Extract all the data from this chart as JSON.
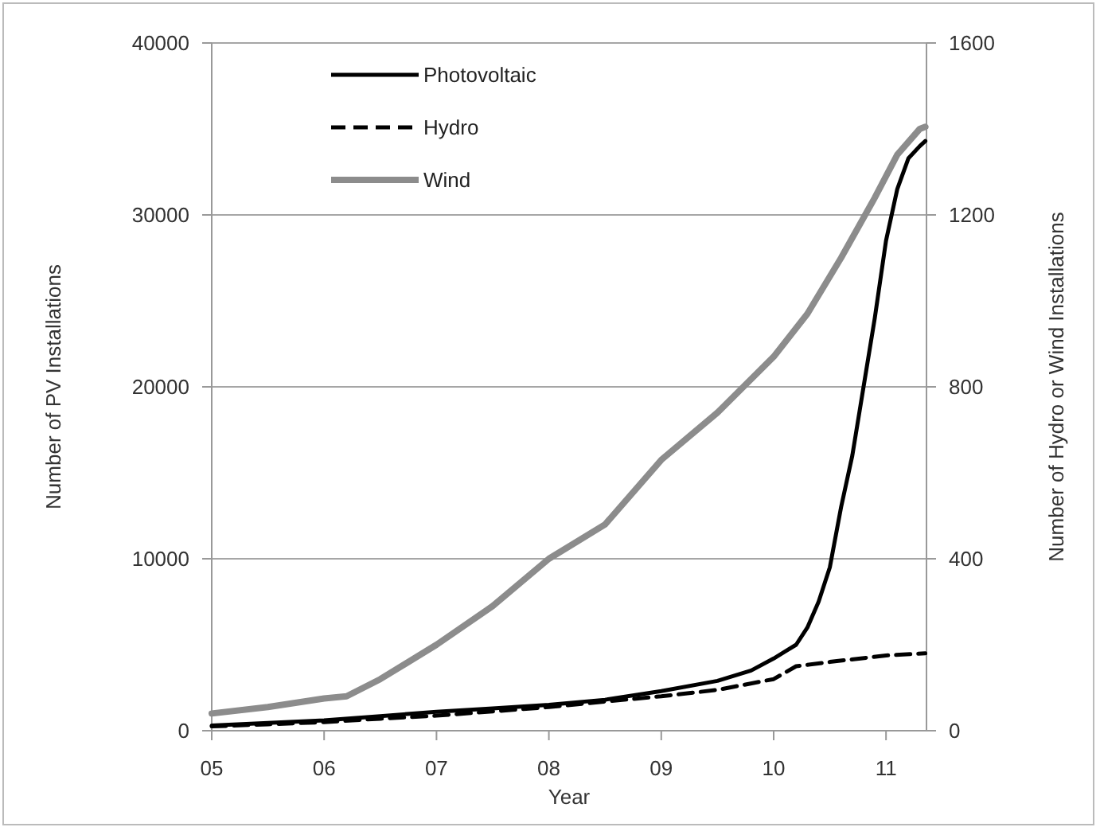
{
  "chart_data": {
    "type": "line",
    "xlabel": "Year",
    "ylabel": "Number of PV Installations",
    "y2label": "Number of Hydro or Wind Installations",
    "xlim": [
      5,
      11.36
    ],
    "xticks": [
      {
        "value": 5,
        "label": "05"
      },
      {
        "value": 6,
        "label": "06"
      },
      {
        "value": 7,
        "label": "07"
      },
      {
        "value": 8,
        "label": "08"
      },
      {
        "value": 9,
        "label": "09"
      },
      {
        "value": 10,
        "label": "10"
      },
      {
        "value": 11,
        "label": "11"
      }
    ],
    "ylim": [
      0,
      40000
    ],
    "yticks": [
      0,
      10000,
      20000,
      30000,
      40000
    ],
    "y2lim": [
      0,
      1600
    ],
    "y2ticks": [
      0,
      400,
      800,
      1200,
      1600
    ],
    "grid": "y",
    "legend": "top left",
    "series": [
      {
        "name": "Photovoltaic",
        "color": "#000000",
        "line_style": "solid",
        "x": [
          5,
          5.5,
          6,
          6.5,
          7,
          7.5,
          8,
          8.5,
          9,
          9.5,
          9.8,
          10,
          10.1,
          10.2,
          10.3,
          10.4,
          10.5,
          10.6,
          10.7,
          10.8,
          10.9,
          11,
          11.1,
          11.2,
          11.3,
          11.35
        ],
        "values": [
          300,
          450,
          600,
          850,
          1100,
          1300,
          1500,
          1800,
          2300,
          2900,
          3500,
          4200,
          4600,
          5000,
          6000,
          7500,
          9500,
          13000,
          16000,
          20000,
          24000,
          28500,
          31500,
          33300,
          34000,
          34300
        ]
      },
      {
        "name": "Hydro",
        "color": "#000000",
        "line_style": "dashed",
        "axis": "y2",
        "x": [
          5,
          5.5,
          6,
          6.5,
          7,
          7.5,
          8,
          8.5,
          9,
          9.5,
          10,
          10.2,
          10.5,
          11,
          11.35
        ],
        "values": [
          10,
          15,
          20,
          28,
          35,
          45,
          55,
          68,
          80,
          95,
          120,
          150,
          160,
          175,
          180
        ]
      },
      {
        "name": "Wind",
        "color": "#8c8c8c",
        "line_style": "solid",
        "axis": "y2",
        "x": [
          5,
          5.5,
          6,
          6.2,
          6.5,
          7,
          7.5,
          8,
          8.5,
          9,
          9.5,
          10,
          10.3,
          10.6,
          10.9,
          11.1,
          11.3,
          11.35
        ],
        "values": [
          40,
          55,
          75,
          80,
          120,
          200,
          290,
          400,
          480,
          630,
          740,
          870,
          970,
          1100,
          1240,
          1340,
          1400,
          1405
        ]
      }
    ]
  }
}
